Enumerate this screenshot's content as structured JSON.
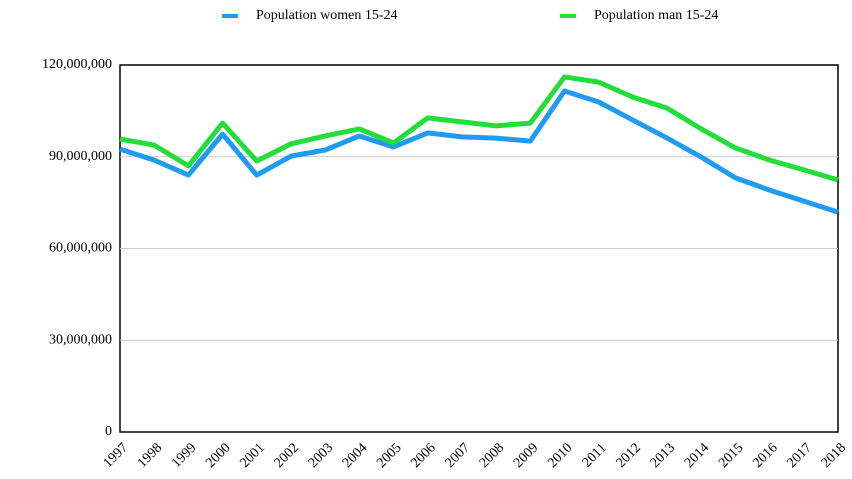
{
  "chart_data": {
    "type": "line",
    "categories": [
      "1997",
      "1998",
      "1999",
      "2000",
      "2001",
      "2002",
      "2003",
      "2004",
      "2005",
      "2006",
      "2007",
      "2008",
      "2009",
      "2010",
      "2011",
      "2012",
      "2013",
      "2014",
      "2015",
      "2016",
      "2017",
      "2018"
    ],
    "series": [
      {
        "name": "Population women 15-24",
        "color": "#1f9bf0",
        "values": [
          92500000,
          88900000,
          84000000,
          97400000,
          84000000,
          90200000,
          92200000,
          96800000,
          93200000,
          97800000,
          96500000,
          96100000,
          95100000,
          111500000,
          107900000,
          102000000,
          96100000,
          89900000,
          83100000,
          79100000,
          75500000,
          71900000
        ]
      },
      {
        "name": "Population man 15-24",
        "color": "#22dd3a",
        "values": [
          95800000,
          93800000,
          87000000,
          101000000,
          88600000,
          94200000,
          96800000,
          99100000,
          94500000,
          102700000,
          101400000,
          100100000,
          101000000,
          116100000,
          114400000,
          109500000,
          105900000,
          99100000,
          92900000,
          88900000,
          85700000,
          82400000
        ]
      }
    ],
    "ylim": [
      0,
      120000000
    ],
    "yticks": [
      0,
      {
        "value": 30000000,
        "label": "30,000,000"
      },
      {
        "value": 60000000,
        "label": "60,000,000"
      },
      {
        "value": 90000000,
        "label": "90,000,000"
      },
      {
        "value": 120000000,
        "label": "120,000,000"
      }
    ],
    "grid": true,
    "legend": "top"
  }
}
